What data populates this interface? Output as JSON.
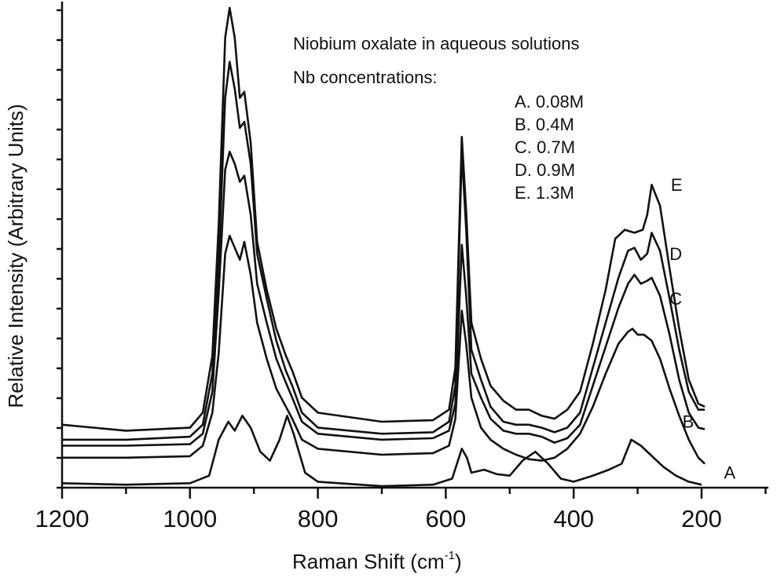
{
  "chart_data": {
    "type": "line",
    "title": "",
    "xlabel_main": "Raman Shift (cm",
    "xlabel_sup": "-1",
    "xlabel_end": ")",
    "ylabel": "Relative Intensity (Arbitrary Units)",
    "xlim": [
      1200,
      100
    ],
    "x_reversed": true,
    "ylim": [
      0,
      16
    ],
    "x_ticks": [
      "1200",
      "1000",
      "800",
      "600",
      "400",
      "200"
    ],
    "annotations": {
      "line1": "Niobium oxalate in aqueous solutions",
      "line2": "Nb concentrations:"
    },
    "legend": [
      {
        "key": "A",
        "text": "A. 0.08M"
      },
      {
        "key": "B",
        "text": "B. 0.4M"
      },
      {
        "key": "C",
        "text": "C. 0.7M"
      },
      {
        "key": "D",
        "text": "D. 0.9M"
      },
      {
        "key": "E",
        "text": "E. 1.3M"
      }
    ],
    "series": [
      {
        "name": "A",
        "label_x": 165,
        "label_y": 0.3,
        "points": [
          [
            1200,
            0.15
          ],
          [
            1100,
            0.1
          ],
          [
            1000,
            0.15
          ],
          [
            970,
            0.4
          ],
          [
            955,
            1.6
          ],
          [
            940,
            2.2
          ],
          [
            930,
            1.9
          ],
          [
            918,
            2.4
          ],
          [
            905,
            2.0
          ],
          [
            890,
            1.2
          ],
          [
            875,
            0.9
          ],
          [
            860,
            1.6
          ],
          [
            848,
            2.4
          ],
          [
            838,
            1.8
          ],
          [
            820,
            0.5
          ],
          [
            800,
            0.2
          ],
          [
            700,
            0.05
          ],
          [
            620,
            0.1
          ],
          [
            590,
            0.3
          ],
          [
            575,
            1.3
          ],
          [
            567,
            1.0
          ],
          [
            560,
            0.5
          ],
          [
            540,
            0.6
          ],
          [
            520,
            0.45
          ],
          [
            500,
            0.4
          ],
          [
            480,
            0.9
          ],
          [
            460,
            1.2
          ],
          [
            440,
            0.8
          ],
          [
            420,
            0.3
          ],
          [
            400,
            0.2
          ],
          [
            370,
            0.4
          ],
          [
            345,
            0.6
          ],
          [
            325,
            0.8
          ],
          [
            310,
            1.6
          ],
          [
            295,
            1.4
          ],
          [
            280,
            1.1
          ],
          [
            260,
            0.7
          ],
          [
            240,
            0.4
          ],
          [
            220,
            0.2
          ],
          [
            200,
            0.1
          ]
        ]
      },
      {
        "name": "B",
        "label_x": 230,
        "label_y": 2.0,
        "points": [
          [
            1200,
            1.0
          ],
          [
            1100,
            1.0
          ],
          [
            1000,
            1.05
          ],
          [
            980,
            1.4
          ],
          [
            965,
            2.5
          ],
          [
            955,
            4.5
          ],
          [
            945,
            7.8
          ],
          [
            938,
            8.4
          ],
          [
            930,
            8.0
          ],
          [
            922,
            7.6
          ],
          [
            915,
            8.2
          ],
          [
            905,
            7.1
          ],
          [
            895,
            5.5
          ],
          [
            880,
            4.3
          ],
          [
            865,
            3.3
          ],
          [
            850,
            2.7
          ],
          [
            840,
            2.3
          ],
          [
            825,
            1.6
          ],
          [
            800,
            1.3
          ],
          [
            700,
            1.1
          ],
          [
            620,
            1.15
          ],
          [
            595,
            1.4
          ],
          [
            585,
            2.3
          ],
          [
            575,
            5.9
          ],
          [
            568,
            4.8
          ],
          [
            560,
            3.0
          ],
          [
            545,
            2.0
          ],
          [
            530,
            1.6
          ],
          [
            510,
            1.3
          ],
          [
            490,
            1.1
          ],
          [
            470,
            0.95
          ],
          [
            450,
            0.9
          ],
          [
            430,
            1.0
          ],
          [
            410,
            1.3
          ],
          [
            390,
            1.8
          ],
          [
            370,
            2.7
          ],
          [
            350,
            3.8
          ],
          [
            330,
            4.8
          ],
          [
            315,
            5.2
          ],
          [
            308,
            5.3
          ],
          [
            300,
            5.1
          ],
          [
            290,
            5.1
          ],
          [
            278,
            4.9
          ],
          [
            265,
            4.3
          ],
          [
            250,
            3.3
          ],
          [
            235,
            2.4
          ],
          [
            220,
            1.6
          ],
          [
            205,
            1.0
          ],
          [
            195,
            0.8
          ]
        ]
      },
      {
        "name": "C",
        "label_x": 250,
        "label_y": 6.1,
        "points": [
          [
            1200,
            1.4
          ],
          [
            1100,
            1.4
          ],
          [
            1000,
            1.45
          ],
          [
            980,
            1.8
          ],
          [
            965,
            3.2
          ],
          [
            955,
            6.5
          ],
          [
            945,
            10.6
          ],
          [
            938,
            11.2
          ],
          [
            930,
            10.8
          ],
          [
            922,
            10.2
          ],
          [
            915,
            10.4
          ],
          [
            905,
            9.1
          ],
          [
            895,
            6.8
          ],
          [
            880,
            5.5
          ],
          [
            865,
            4.3
          ],
          [
            850,
            3.5
          ],
          [
            840,
            3.0
          ],
          [
            825,
            2.2
          ],
          [
            800,
            1.8
          ],
          [
            700,
            1.6
          ],
          [
            620,
            1.65
          ],
          [
            595,
            1.9
          ],
          [
            585,
            2.8
          ],
          [
            575,
            8.1
          ],
          [
            568,
            6.4
          ],
          [
            560,
            3.8
          ],
          [
            545,
            3.0
          ],
          [
            530,
            2.3
          ],
          [
            510,
            1.9
          ],
          [
            490,
            1.8
          ],
          [
            470,
            1.8
          ],
          [
            450,
            1.7
          ],
          [
            430,
            1.5
          ],
          [
            410,
            1.65
          ],
          [
            390,
            2.1
          ],
          [
            370,
            3.4
          ],
          [
            350,
            4.7
          ],
          [
            330,
            6.0
          ],
          [
            315,
            6.8
          ],
          [
            305,
            7.1
          ],
          [
            295,
            6.8
          ],
          [
            285,
            6.9
          ],
          [
            278,
            7.0
          ],
          [
            265,
            6.4
          ],
          [
            250,
            5.1
          ],
          [
            235,
            3.6
          ],
          [
            220,
            2.5
          ],
          [
            205,
            2.0
          ],
          [
            195,
            1.95
          ]
        ]
      },
      {
        "name": "D",
        "label_x": 250,
        "label_y": 7.6,
        "points": [
          [
            1200,
            1.6
          ],
          [
            1100,
            1.6
          ],
          [
            1000,
            1.7
          ],
          [
            980,
            2.1
          ],
          [
            965,
            3.8
          ],
          [
            955,
            7.5
          ],
          [
            945,
            13.0
          ],
          [
            938,
            14.2
          ],
          [
            930,
            13.3
          ],
          [
            922,
            12.0
          ],
          [
            915,
            12.2
          ],
          [
            905,
            10.8
          ],
          [
            895,
            7.8
          ],
          [
            880,
            6.3
          ],
          [
            865,
            4.9
          ],
          [
            850,
            3.9
          ],
          [
            840,
            3.4
          ],
          [
            825,
            2.5
          ],
          [
            800,
            2.0
          ],
          [
            700,
            1.8
          ],
          [
            620,
            1.85
          ],
          [
            595,
            2.2
          ],
          [
            585,
            3.4
          ],
          [
            575,
            11.2
          ],
          [
            568,
            8.6
          ],
          [
            560,
            4.6
          ],
          [
            545,
            3.6
          ],
          [
            530,
            2.7
          ],
          [
            510,
            2.2
          ],
          [
            490,
            2.1
          ],
          [
            470,
            2.1
          ],
          [
            450,
            2.0
          ],
          [
            430,
            1.85
          ],
          [
            410,
            2.0
          ],
          [
            390,
            2.5
          ],
          [
            370,
            4.0
          ],
          [
            350,
            5.5
          ],
          [
            330,
            7.0
          ],
          [
            315,
            7.9
          ],
          [
            305,
            8.0
          ],
          [
            295,
            7.6
          ],
          [
            285,
            7.8
          ],
          [
            278,
            8.5
          ],
          [
            265,
            7.9
          ],
          [
            250,
            6.3
          ],
          [
            235,
            4.6
          ],
          [
            220,
            3.2
          ],
          [
            205,
            2.6
          ],
          [
            195,
            2.6
          ]
        ]
      },
      {
        "name": "E",
        "label_x": 248,
        "label_y": 9.9,
        "points": [
          [
            1200,
            2.1
          ],
          [
            1100,
            1.9
          ],
          [
            1000,
            2.0
          ],
          [
            980,
            2.5
          ],
          [
            965,
            4.4
          ],
          [
            955,
            8.8
          ],
          [
            945,
            15.0
          ],
          [
            938,
            16.0
          ],
          [
            930,
            15.0
          ],
          [
            922,
            13.0
          ],
          [
            915,
            13.2
          ],
          [
            905,
            11.5
          ],
          [
            895,
            8.2
          ],
          [
            880,
            6.6
          ],
          [
            865,
            5.3
          ],
          [
            850,
            4.4
          ],
          [
            840,
            3.9
          ],
          [
            825,
            3.0
          ],
          [
            800,
            2.5
          ],
          [
            700,
            2.2
          ],
          [
            620,
            2.25
          ],
          [
            595,
            2.6
          ],
          [
            585,
            4.0
          ],
          [
            575,
            11.7
          ],
          [
            568,
            9.2
          ],
          [
            560,
            5.5
          ],
          [
            545,
            4.3
          ],
          [
            530,
            3.4
          ],
          [
            510,
            2.9
          ],
          [
            490,
            2.6
          ],
          [
            470,
            2.6
          ],
          [
            450,
            2.4
          ],
          [
            430,
            2.3
          ],
          [
            410,
            2.6
          ],
          [
            390,
            3.2
          ],
          [
            370,
            4.8
          ],
          [
            350,
            6.6
          ],
          [
            335,
            8.3
          ],
          [
            320,
            8.6
          ],
          [
            305,
            8.5
          ],
          [
            292,
            8.6
          ],
          [
            285,
            9.1
          ],
          [
            278,
            10.1
          ],
          [
            265,
            9.4
          ],
          [
            250,
            7.3
          ],
          [
            235,
            5.3
          ],
          [
            220,
            3.6
          ],
          [
            205,
            2.8
          ],
          [
            195,
            2.7
          ]
        ]
      }
    ]
  }
}
